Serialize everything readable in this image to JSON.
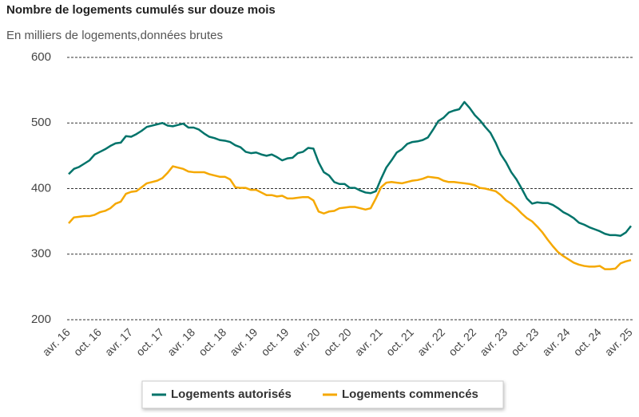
{
  "chart_data": {
    "type": "line",
    "title": "Nombre de logements cumulés sur douze mois",
    "subtitle": "En milliers de logements,données brutes",
    "categories": [
      "avr. 16",
      null,
      null,
      null,
      null,
      null,
      "oct. 16",
      null,
      null,
      null,
      null,
      null,
      "avr. 17",
      null,
      null,
      null,
      null,
      null,
      "oct. 17",
      null,
      null,
      null,
      null,
      null,
      "avr. 18",
      null,
      null,
      null,
      null,
      null,
      "oct. 18",
      null,
      null,
      null,
      null,
      null,
      "avr. 19",
      null,
      null,
      null,
      null,
      null,
      "oct. 19",
      null,
      null,
      null,
      null,
      null,
      "avr. 20",
      null,
      null,
      null,
      null,
      null,
      "oct. 20",
      null,
      null,
      null,
      null,
      null,
      "avr. 21",
      null,
      null,
      null,
      null,
      null,
      "oct. 21",
      null,
      null,
      null,
      null,
      null,
      "avr. 22",
      null,
      null,
      null,
      null,
      null,
      "oct. 22",
      null,
      null,
      null,
      null,
      null,
      "avr. 23",
      null,
      null,
      null,
      null,
      null,
      "oct. 23",
      null,
      null,
      null,
      null,
      null,
      "avr. 24",
      null,
      null,
      null,
      null,
      null,
      "oct. 24",
      null,
      null,
      null,
      null,
      null,
      "avr. 25"
    ],
    "series": [
      {
        "name": "Logements autorisés",
        "color": "#00736a",
        "values": [
          422,
          430,
          433,
          438,
          443,
          452,
          456,
          460,
          465,
          469,
          470,
          480,
          479,
          483,
          488,
          494,
          496,
          498,
          500,
          496,
          495,
          497,
          499,
          493,
          493,
          490,
          484,
          479,
          477,
          474,
          473,
          471,
          466,
          463,
          456,
          454,
          455,
          452,
          450,
          452,
          448,
          443,
          446,
          447,
          454,
          456,
          462,
          461,
          440,
          425,
          420,
          410,
          407,
          407,
          401,
          401,
          397,
          394,
          393,
          396,
          415,
          432,
          443,
          455,
          460,
          468,
          471,
          472,
          474,
          478,
          490,
          503,
          508,
          516,
          519,
          521,
          532,
          523,
          512,
          504,
          494,
          485,
          470,
          452,
          440,
          425,
          414,
          400,
          385,
          377,
          379,
          378,
          378,
          375,
          370,
          364,
          360,
          355,
          348,
          345,
          341,
          338,
          335,
          331,
          329,
          329,
          328,
          333,
          343
        ]
      },
      {
        "name": "Logements commencés",
        "color": "#f5a800",
        "values": [
          347,
          356,
          357,
          358,
          358,
          360,
          364,
          366,
          370,
          377,
          380,
          392,
          395,
          396,
          402,
          408,
          410,
          412,
          416,
          424,
          434,
          432,
          430,
          426,
          425,
          425,
          425,
          422,
          420,
          418,
          418,
          414,
          402,
          401,
          401,
          398,
          398,
          394,
          390,
          390,
          388,
          389,
          385,
          385,
          386,
          387,
          387,
          382,
          365,
          362,
          365,
          366,
          370,
          371,
          372,
          372,
          370,
          368,
          370,
          385,
          402,
          409,
          410,
          409,
          408,
          410,
          412,
          413,
          415,
          418,
          417,
          416,
          412,
          410,
          410,
          409,
          408,
          407,
          405,
          401,
          400,
          398,
          396,
          390,
          382,
          377,
          370,
          362,
          355,
          350,
          342,
          333,
          322,
          312,
          303,
          297,
          292,
          287,
          284,
          282,
          281,
          281,
          282,
          277,
          277,
          278,
          286,
          289,
          291
        ]
      }
    ],
    "ylim": [
      200,
      600
    ],
    "yticks": [
      200,
      300,
      400,
      500,
      600
    ],
    "grid": true
  }
}
